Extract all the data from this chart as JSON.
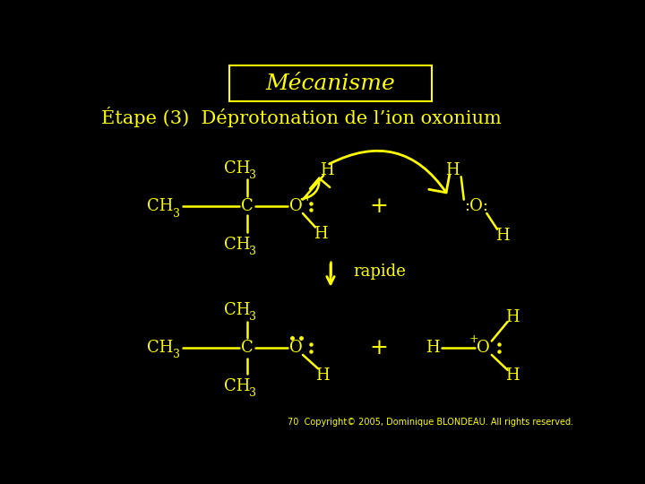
{
  "bg_color": "#000000",
  "text_color": "#ffff00",
  "title": "Mécanisme",
  "subtitle": "Étape (3)  Déprotonation de l’ion oxonium",
  "copyright": "70  Copyright© 2005, Dominique BLONDEAU. All rights reserved.",
  "font_size_title": 18,
  "font_size_subtitle": 15,
  "font_size_mol": 13,
  "font_size_sub": 9,
  "font_size_rapide": 13,
  "font_size_small": 7
}
